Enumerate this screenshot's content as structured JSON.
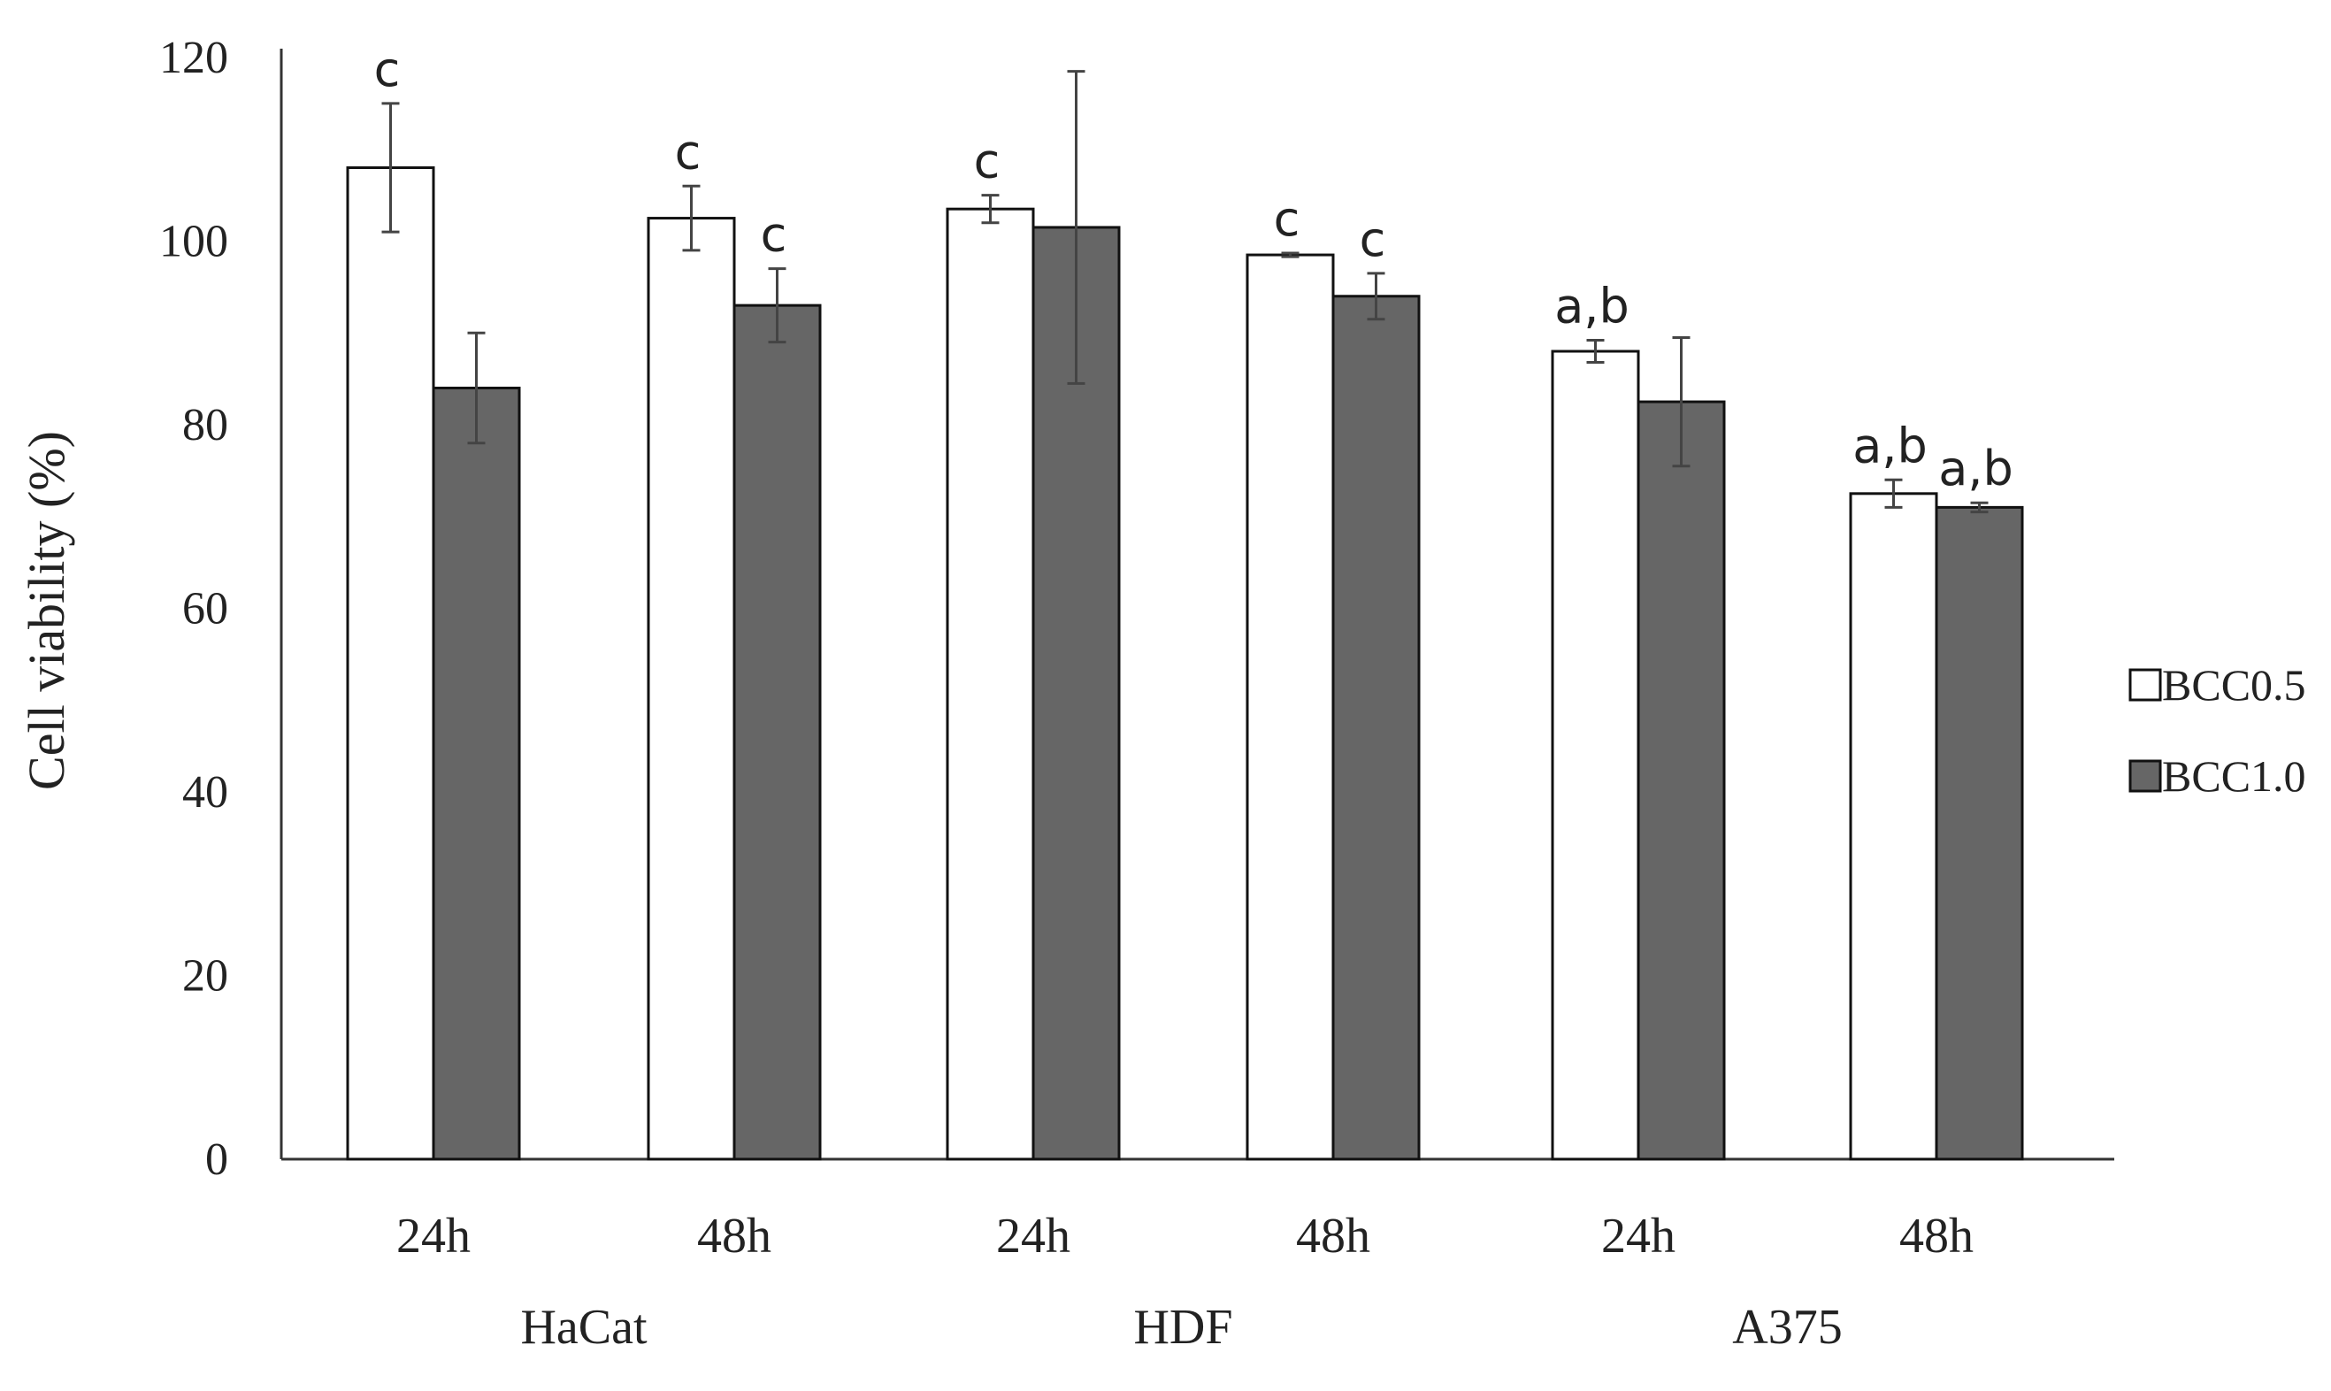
{
  "chart_data": {
    "type": "bar",
    "title": "",
    "xlabel": "",
    "ylabel": "Cell viability (%)",
    "ylim": [
      0,
      120
    ],
    "yticks": [
      0,
      20,
      40,
      60,
      80,
      100,
      120
    ],
    "grid": false,
    "legend_position": "right",
    "categories": [
      "24h",
      "48h",
      "24h",
      "48h",
      "24h",
      "48h"
    ],
    "groups": [
      {
        "label": "HaCat",
        "categories": [
          0,
          1
        ]
      },
      {
        "label": "HDF",
        "categories": [
          2,
          3
        ]
      },
      {
        "label": "A375",
        "categories": [
          4,
          5
        ]
      }
    ],
    "series": [
      {
        "name": "BCC0.5",
        "fill": "#ffffff",
        "values": [
          108,
          102.5,
          103.5,
          98.5,
          88,
          72.5
        ],
        "errors": [
          7,
          3.5,
          1.5,
          0.2,
          1.2,
          1.5
        ],
        "annotations": [
          "c",
          "c",
          "c",
          "c",
          "a,b",
          "a,b"
        ]
      },
      {
        "name": "BCC1.0",
        "fill": "#666666",
        "values": [
          84,
          93,
          101.5,
          94,
          82.5,
          71
        ],
        "errors": [
          6,
          4,
          17,
          2.5,
          7,
          0.5
        ],
        "annotations": [
          "",
          "c",
          "",
          "c",
          "",
          "a,b"
        ]
      }
    ]
  }
}
